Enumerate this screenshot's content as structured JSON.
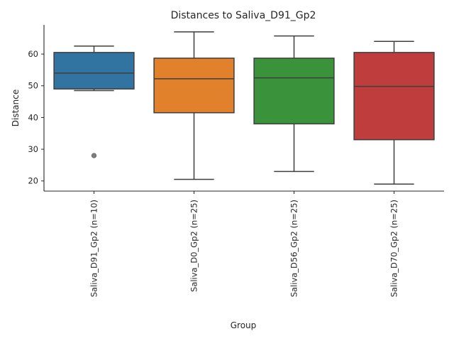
{
  "chart_data": {
    "type": "box",
    "title": "Distances to Saliva_D91_Gp2",
    "xlabel": "Group",
    "ylabel": "Distance",
    "ylim": [
      16.8,
      69.2
    ],
    "yticks": [
      20,
      30,
      40,
      50,
      60
    ],
    "grid": false,
    "categories": [
      "Saliva_D91_Gp2 (n=10)",
      "Saliva_D0_Gp2 (n=25)",
      "Saliva_D56_Gp2 (n=25)",
      "Saliva_D70_Gp2 (n=25)"
    ],
    "boxes": [
      {
        "whisker_low": 48.5,
        "q1": 49.0,
        "median": 54.0,
        "q3": 60.5,
        "whisker_high": 62.5,
        "outliers": [
          28.0
        ],
        "color": "#3274a1"
      },
      {
        "whisker_low": 20.5,
        "q1": 41.5,
        "median": 52.2,
        "q3": 58.7,
        "whisker_high": 67.0,
        "outliers": [],
        "color": "#e1812c"
      },
      {
        "whisker_low": 23.0,
        "q1": 38.0,
        "median": 52.5,
        "q3": 58.7,
        "whisker_high": 65.7,
        "outliers": [],
        "color": "#3a923a"
      },
      {
        "whisker_low": 19.0,
        "q1": 33.0,
        "median": 49.8,
        "q3": 60.5,
        "whisker_high": 64.0,
        "outliers": [],
        "color": "#c03d3e"
      }
    ]
  }
}
